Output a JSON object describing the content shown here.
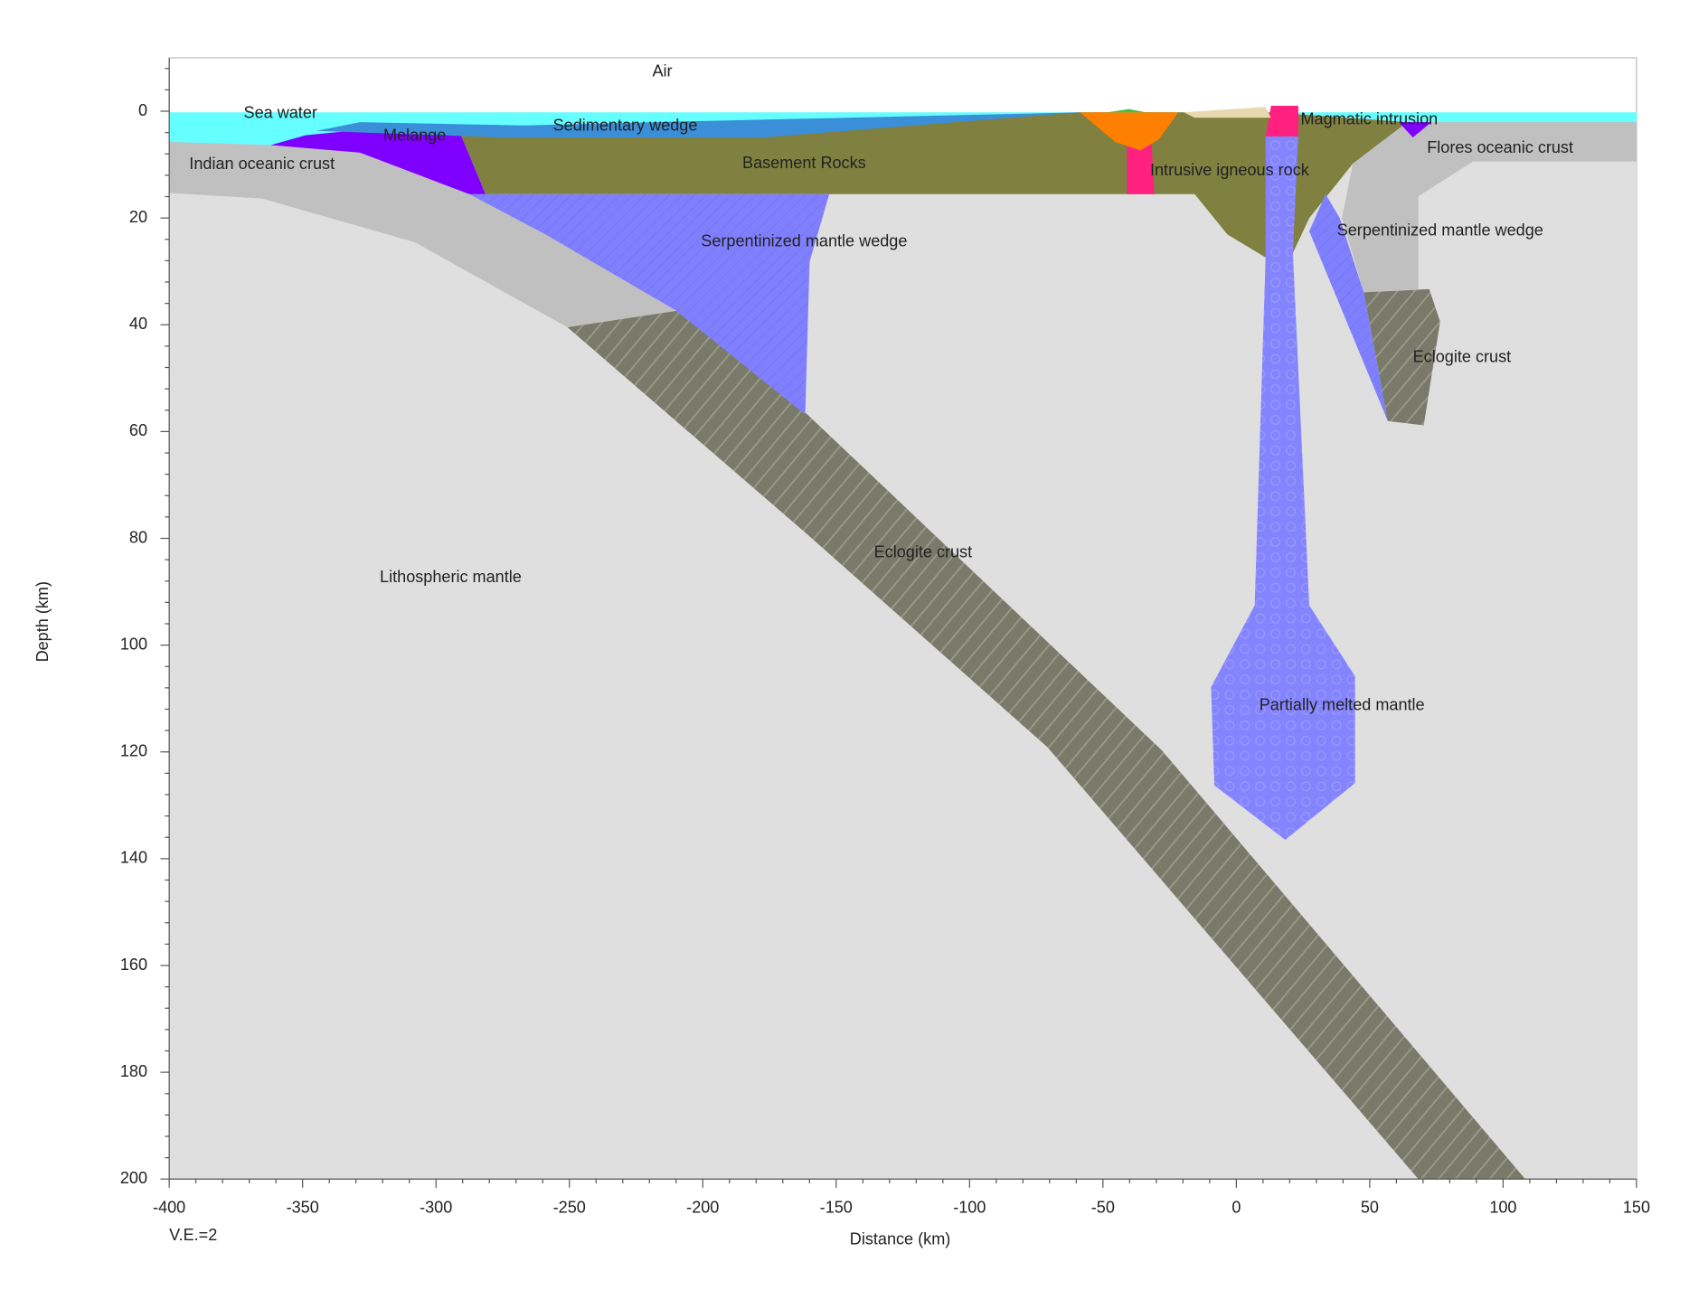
{
  "chart_data": {
    "type": "section",
    "xlabel": "Distance (km)",
    "ylabel": "Depth (km)",
    "note": "V.E.=2",
    "xlim": [
      -400,
      150
    ],
    "ylim": [
      -10,
      200
    ],
    "y_inverted": true,
    "xticks": [
      -400,
      -350,
      -300,
      -250,
      -200,
      -150,
      -100,
      -50,
      0,
      50,
      100,
      150
    ],
    "yticks": [
      0,
      20,
      40,
      60,
      80,
      100,
      120,
      140,
      160,
      180,
      200
    ],
    "annotations": [
      "Air",
      "Sea water",
      "Melange",
      "Sedimentary wedge",
      "Basement Rocks",
      "Indian oceanic crust",
      "Intrusive igneous rock",
      "Magmatic intrusion",
      "Flores oceanic crust",
      "Serpentinized mantle wedge",
      "Serpentinized mantle wedge",
      "Eclogite crust",
      "Eclogite crust",
      "Lithospheric mantle",
      "Partially melted mantle"
    ]
  }
}
